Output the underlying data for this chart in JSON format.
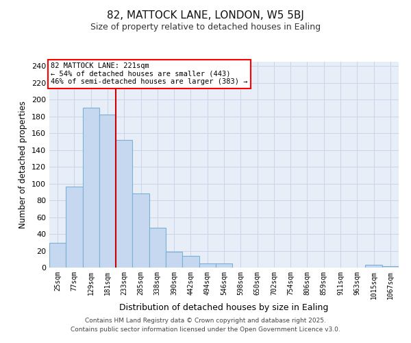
{
  "title": "82, MATTOCK LANE, LONDON, W5 5BJ",
  "subtitle": "Size of property relative to detached houses in Ealing",
  "xlabel": "Distribution of detached houses by size in Ealing",
  "ylabel": "Number of detached properties",
  "bar_labels": [
    "25sqm",
    "77sqm",
    "129sqm",
    "181sqm",
    "233sqm",
    "285sqm",
    "338sqm",
    "390sqm",
    "442sqm",
    "494sqm",
    "546sqm",
    "598sqm",
    "650sqm",
    "702sqm",
    "754sqm",
    "806sqm",
    "859sqm",
    "911sqm",
    "963sqm",
    "1015sqm",
    "1067sqm"
  ],
  "bar_values": [
    29,
    96,
    190,
    182,
    152,
    88,
    47,
    19,
    14,
    5,
    5,
    0,
    0,
    0,
    0,
    0,
    0,
    0,
    0,
    3,
    2
  ],
  "bar_color": "#c5d8f0",
  "bar_edge_color": "#7bafd4",
  "vline_x": 4.0,
  "vline_color": "#cc0000",
  "annotation_text_line1": "82 MATTOCK LANE: 221sqm",
  "annotation_text_line2": "← 54% of detached houses are smaller (443)",
  "annotation_text_line3": "46% of semi-detached houses are larger (383) →",
  "ylim": [
    0,
    245
  ],
  "yticks": [
    0,
    20,
    40,
    60,
    80,
    100,
    120,
    140,
    160,
    180,
    200,
    220,
    240
  ],
  "plot_bg_color": "#e8eef8",
  "fig_bg_color": "#ffffff",
  "grid_color": "#c8d4e8",
  "footer_line1": "Contains HM Land Registry data © Crown copyright and database right 2025.",
  "footer_line2": "Contains public sector information licensed under the Open Government Licence v3.0."
}
